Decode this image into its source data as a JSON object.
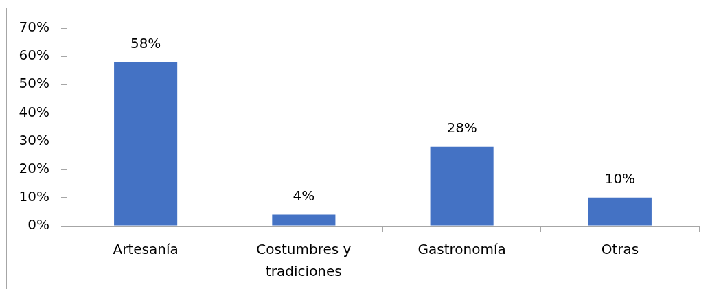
{
  "chart_data": {
    "type": "bar",
    "categories": [
      "Artesanía",
      "Costumbres y tradiciones",
      "Gastronomía",
      "Otras"
    ],
    "values": [
      58,
      4,
      28,
      10
    ],
    "color": "#4472c4",
    "value_labels": [
      "58%",
      "4%",
      "28%",
      "10%"
    ],
    "ylim": [
      0,
      70
    ],
    "yticks": [
      {
        "value": 0,
        "label": "0%"
      },
      {
        "value": 10,
        "label": "10%"
      },
      {
        "value": 20,
        "label": "20%"
      },
      {
        "value": 30,
        "label": "30%"
      },
      {
        "value": 40,
        "label": "40%"
      },
      {
        "value": 50,
        "label": "50%"
      },
      {
        "value": 60,
        "label": "60%"
      },
      {
        "value": 70,
        "label": "70%"
      }
    ]
  }
}
